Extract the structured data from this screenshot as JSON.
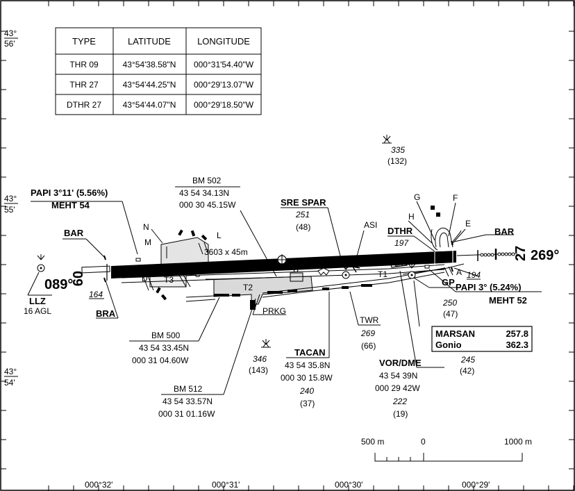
{
  "threshold_table": {
    "headers": [
      "TYPE",
      "LATITUDE",
      "LONGITUDE"
    ],
    "rows": [
      [
        "THR 09",
        "43°54'38.58\"N",
        "000°31'54.40\"W"
      ],
      [
        "THR 27",
        "43°54'44.25\"N",
        "000°29'13.07\"W"
      ],
      [
        "DTHR 27",
        "43°54'44.07\"N",
        "000°29'18.50\"W"
      ]
    ]
  },
  "latitude_labels": [
    {
      "deg": "43°",
      "min": "56'"
    },
    {
      "deg": "43°",
      "min": "55'"
    },
    {
      "deg": "43°",
      "min": "54'"
    }
  ],
  "longitude_labels": [
    "000°32'",
    "000°31'",
    "000°30'",
    "000°29'"
  ],
  "runway": {
    "dimensions": "3603 x 45m",
    "west_number": "09",
    "west_bearing": "089°",
    "east_number": "27",
    "east_bearing": "269°",
    "west_elevation": "164",
    "east_elevation": "194",
    "dthr_label": "DTHR",
    "dthr_elevation": "197"
  },
  "labels": {
    "papi_09": "PAPI 3°11' (5.56%)",
    "meht_09": "MEHT 54",
    "papi_27": "PAPI 3° (5.24%)",
    "meht_27": "MEHT 52",
    "bar_west": "BAR",
    "bar_east": "BAR",
    "bra": "BRA",
    "llz": "LLZ",
    "llz_height": "16 AGL",
    "asi": "ASI",
    "t1": "T1",
    "t2": "T2",
    "t3": "T3",
    "prkg": "PRKG"
  },
  "taxiways": [
    "A",
    "B",
    "C",
    "D",
    "E",
    "F",
    "G",
    "H",
    "L",
    "M",
    "N"
  ],
  "points": {
    "bm502": {
      "name": "BM 502",
      "lat": "43 54 34.13N",
      "lon": "000 30 45.15W"
    },
    "sre_spar": {
      "name": "SRE SPAR",
      "elev": "251",
      "height": "(48)"
    },
    "obst_335": {
      "elev": "335",
      "height": "(132)"
    },
    "bm500": {
      "name": "BM 500",
      "lat": "43 54 33.45N",
      "lon": "000 31 04.60W"
    },
    "bm512": {
      "name": "BM 512",
      "lat": "43 54 33.57N",
      "lon": "000 31 01.16W"
    },
    "obst_346": {
      "elev": "346",
      "height": "(143)"
    },
    "tacan": {
      "name": "TACAN",
      "lat": "43 54 35.8N",
      "lon": "000 30 15.8W",
      "elev": "240",
      "height": "(37)"
    },
    "twr": {
      "name": "TWR",
      "elev": "269",
      "height": "(66)"
    },
    "vor_dme": {
      "name": "VOR/DME",
      "lat": "43 54 39N",
      "lon": "000 29 42W",
      "elev": "222",
      "height": "(19)"
    },
    "gp": {
      "name": "GP",
      "elev": "250",
      "height": "(47)"
    },
    "marsan": {
      "name": "MARSAN",
      "freq": "257.8",
      "gonio": "Gonio",
      "gonio_freq": "362.3",
      "elev": "245",
      "height": "(42)"
    }
  },
  "scale_bar": {
    "left": "500 m",
    "zero": "0",
    "right": "1000 m"
  }
}
